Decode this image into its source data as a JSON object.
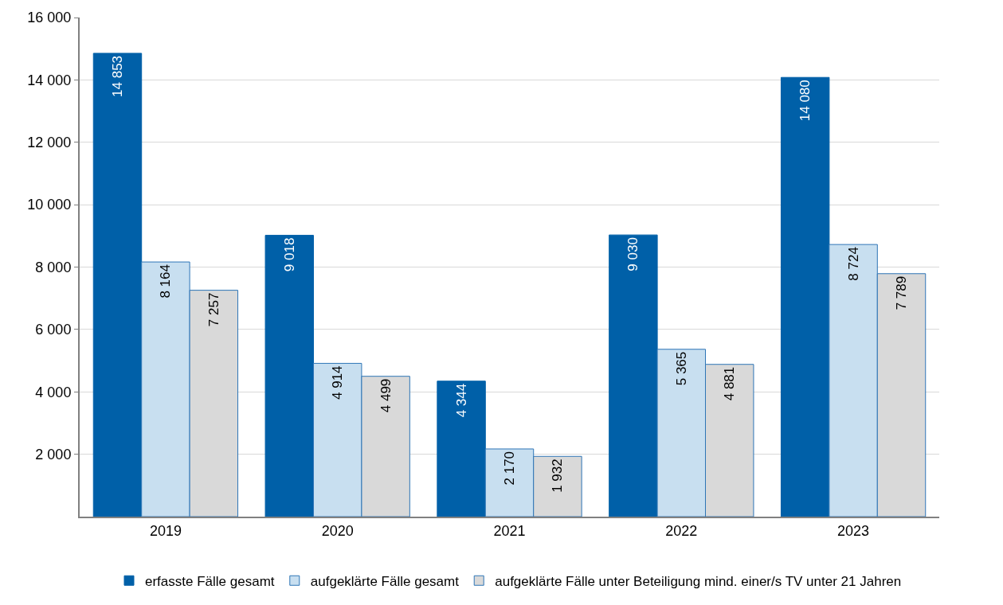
{
  "chart_data": {
    "type": "bar",
    "categories": [
      "2019",
      "2020",
      "2021",
      "2022",
      "2023"
    ],
    "series": [
      {
        "name": "erfasste Fälle gesamt",
        "color": "#0060a8",
        "values": [
          14853,
          9018,
          4344,
          9030,
          14080
        ],
        "value_labels": [
          "14 853",
          "9 018",
          "4 344",
          "9 030",
          "14 080"
        ]
      },
      {
        "name": "aufgeklärte Fälle gesamt",
        "color": "#c8dff0",
        "values": [
          8164,
          4914,
          2170,
          5365,
          8724
        ],
        "value_labels": [
          "8 164",
          "4 914",
          "2 170",
          "5 365",
          "8 724"
        ]
      },
      {
        "name": "aufgeklärte Fälle unter Beteiligung mind. einer/s TV unter 21 Jahren",
        "color": "#d9d9d9",
        "values": [
          7257,
          4499,
          1932,
          4881,
          7789
        ],
        "value_labels": [
          "7 257",
          "4 499",
          "1 932",
          "4 881",
          "7 789"
        ]
      }
    ],
    "ylim": [
      0,
      16000
    ],
    "yticks": [
      {
        "value": 2000,
        "label": "2 000"
      },
      {
        "value": 4000,
        "label": "4 000"
      },
      {
        "value": 6000,
        "label": "6 000"
      },
      {
        "value": 8000,
        "label": "8 000"
      },
      {
        "value": 10000,
        "label": "10 000"
      },
      {
        "value": 12000,
        "label": "12 000"
      },
      {
        "value": 14000,
        "label": "14 000"
      },
      {
        "value": 16000,
        "label": "16 000"
      }
    ],
    "grid": "y",
    "legend": "bottom"
  }
}
